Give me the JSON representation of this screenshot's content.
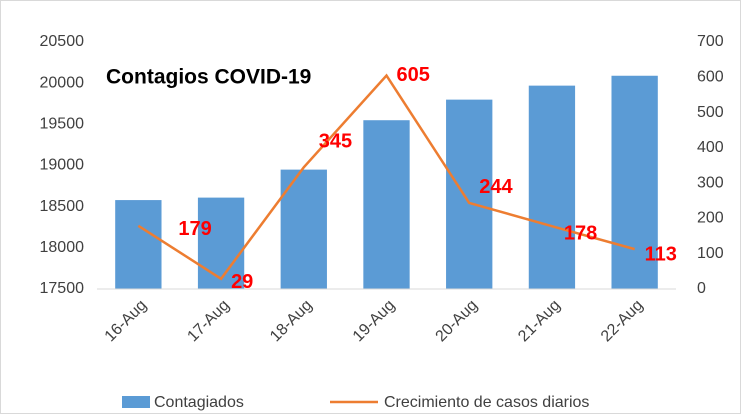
{
  "chart_data": {
    "type": "bar-line",
    "title": "Contagios COVID-19",
    "categories": [
      "16-Aug",
      "17-Aug",
      "18-Aug",
      "19-Aug",
      "20-Aug",
      "21-Aug",
      "22-Aug"
    ],
    "series": [
      {
        "name": "Contagiados",
        "type": "bar",
        "color": "#5b9bd5",
        "values": [
          18580,
          18610,
          18950,
          19550,
          19800,
          19970,
          20090
        ]
      },
      {
        "name": "Crecimiento de casos diarios",
        "type": "line",
        "axis": "y2",
        "color": "#ed7d31",
        "label_color": "#ff0000",
        "values": [
          179,
          29,
          345,
          605,
          244,
          178,
          113
        ]
      }
    ],
    "ylim": [
      17500,
      20500
    ],
    "yticks": [
      17500,
      18000,
      18500,
      19000,
      19500,
      20000,
      20500
    ],
    "y2lim": [
      0,
      700
    ],
    "y2ticks": [
      0,
      100,
      200,
      300,
      400,
      500,
      600,
      700
    ],
    "grid": false,
    "legend": "bottom"
  }
}
